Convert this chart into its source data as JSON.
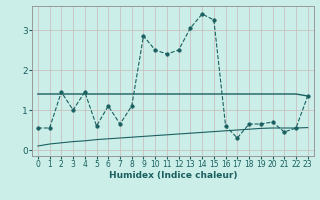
{
  "xlabel": "Humidex (Indice chaleur)",
  "bg_color": "#cceee8",
  "line_color": "#1a6060",
  "grid_color": "#c8b8b8",
  "spine_color": "#999999",
  "xlim": [
    -0.5,
    23.5
  ],
  "ylim": [
    -0.15,
    3.6
  ],
  "xticks": [
    0,
    1,
    2,
    3,
    4,
    5,
    6,
    7,
    8,
    9,
    10,
    11,
    12,
    13,
    14,
    15,
    16,
    17,
    18,
    19,
    20,
    21,
    22,
    23
  ],
  "yticks": [
    0,
    1,
    2,
    3
  ],
  "line1_x": [
    0,
    1,
    2,
    3,
    4,
    5,
    6,
    7,
    8,
    9,
    10,
    11,
    12,
    13,
    14,
    15,
    16,
    17,
    18,
    19,
    20,
    21,
    22,
    23
  ],
  "line1_y": [
    0.55,
    0.55,
    1.45,
    1.0,
    1.45,
    0.6,
    1.1,
    0.65,
    1.1,
    2.85,
    2.5,
    2.4,
    2.5,
    3.05,
    3.4,
    3.25,
    0.6,
    0.3,
    0.65,
    0.65,
    0.7,
    0.45,
    0.55,
    1.35
  ],
  "line2_x": [
    0,
    1,
    2,
    3,
    4,
    5,
    6,
    7,
    8,
    9,
    10,
    11,
    12,
    13,
    14,
    15,
    16,
    17,
    18,
    19,
    20,
    21,
    22,
    23
  ],
  "line2_y": [
    1.4,
    1.4,
    1.4,
    1.4,
    1.4,
    1.4,
    1.4,
    1.4,
    1.4,
    1.4,
    1.4,
    1.4,
    1.4,
    1.4,
    1.4,
    1.4,
    1.4,
    1.4,
    1.4,
    1.4,
    1.4,
    1.4,
    1.4,
    1.35
  ],
  "line3_x": [
    0,
    1,
    2,
    3,
    4,
    5,
    6,
    7,
    8,
    9,
    10,
    11,
    12,
    13,
    14,
    15,
    16,
    17,
    18,
    19,
    20,
    21,
    22,
    23
  ],
  "line3_y": [
    0.1,
    0.15,
    0.18,
    0.21,
    0.23,
    0.26,
    0.28,
    0.3,
    0.32,
    0.34,
    0.36,
    0.38,
    0.4,
    0.42,
    0.44,
    0.46,
    0.48,
    0.5,
    0.52,
    0.54,
    0.55,
    0.55,
    0.55,
    0.56
  ]
}
